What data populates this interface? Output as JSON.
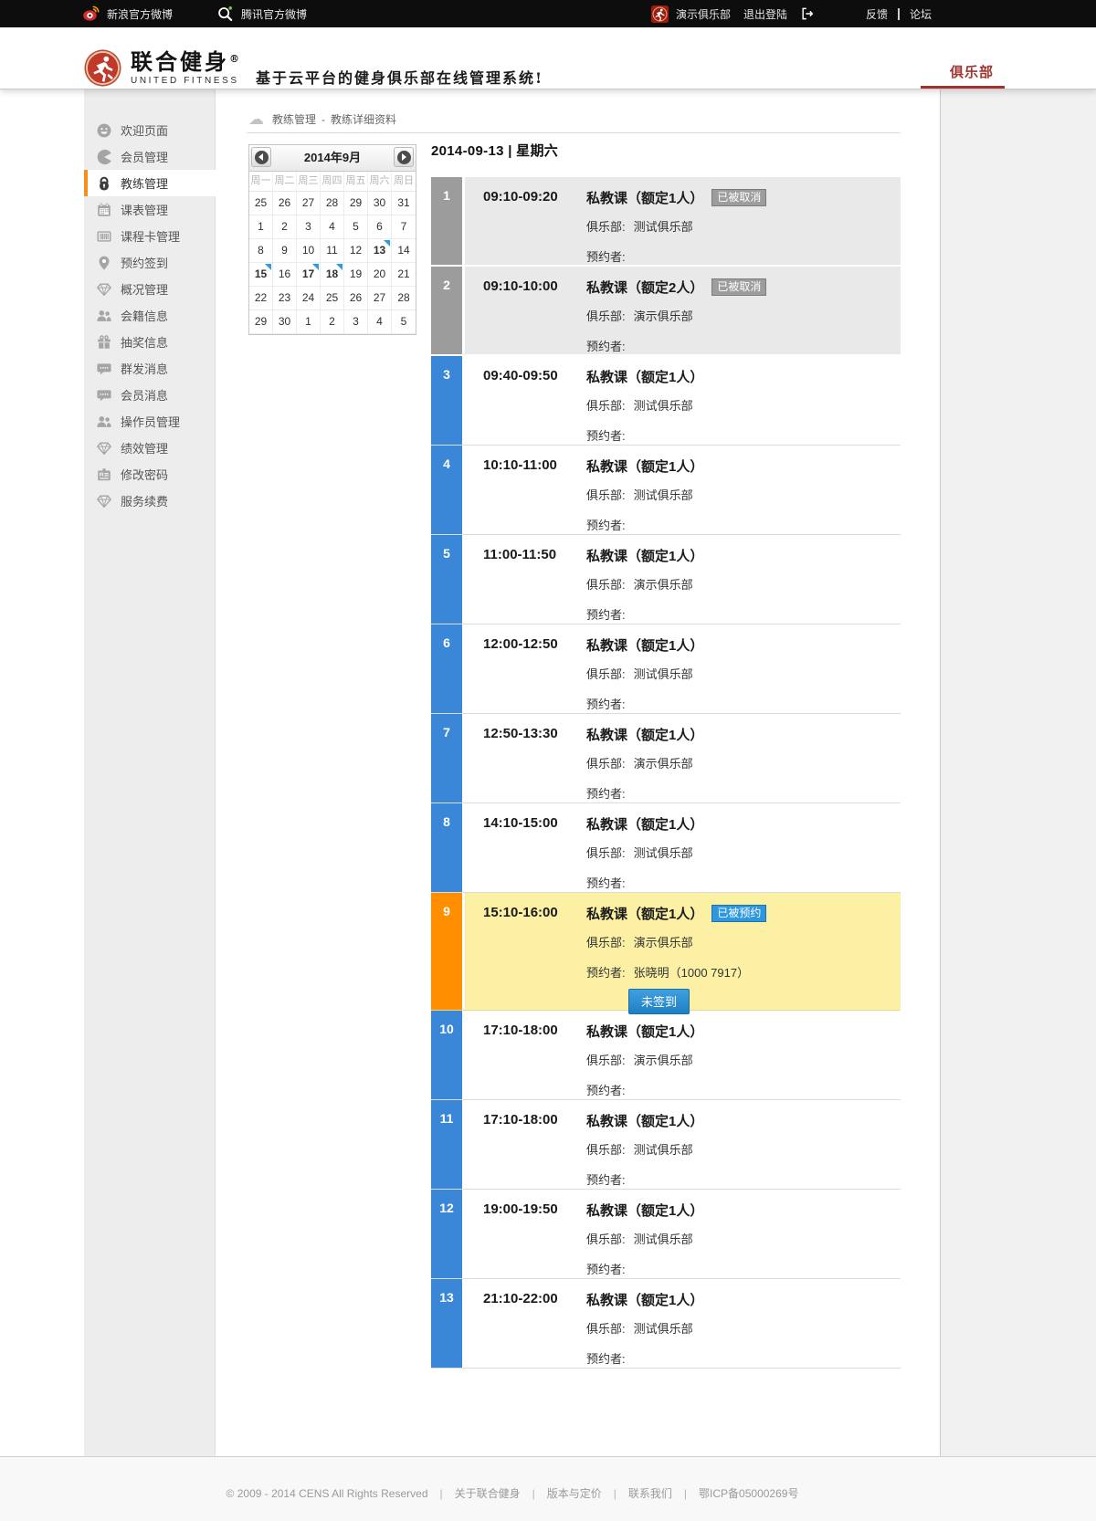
{
  "topbar": {
    "sina": {
      "icon": "sina-weibo-icon",
      "label": "新浪官方微博"
    },
    "tencent": {
      "icon": "tencent-weibo-icon",
      "label": "腾讯官方微博"
    },
    "club": {
      "icon": "club-runner-icon",
      "name": "演示俱乐部"
    },
    "logout_label": "退出登陆",
    "logout_icon": "logout-icon",
    "feedback_label": "反馈",
    "forum_label": "论坛"
  },
  "header": {
    "logo_icon": "runner-logo-icon",
    "brand_name": "联合健身",
    "brand_reg": "®",
    "brand_sub": "UNITED FITNESS",
    "tagline": "基于云平台的健身俱乐部在线管理系统!",
    "nav_tab": "俱乐部"
  },
  "sidebar": {
    "items": [
      {
        "label": "欢迎页面",
        "icon": "smiley-icon",
        "active": false
      },
      {
        "label": "会员管理",
        "icon": "pacman-icon",
        "active": false
      },
      {
        "label": "教练管理",
        "icon": "lock-icon",
        "active": true
      },
      {
        "label": "课表管理",
        "icon": "calendar-icon",
        "active": false
      },
      {
        "label": "课程卡管理",
        "icon": "barcode-icon",
        "active": false
      },
      {
        "label": "预约签到",
        "icon": "pin-icon",
        "active": false
      },
      {
        "label": "概况管理",
        "icon": "diamond-icon",
        "active": false
      },
      {
        "label": "会籍信息",
        "icon": "people-icon",
        "active": false
      },
      {
        "label": "抽奖信息",
        "icon": "gift-icon",
        "active": false
      },
      {
        "label": "群发消息",
        "icon": "chat-icon",
        "active": false
      },
      {
        "label": "会员消息",
        "icon": "chat-icon",
        "active": false
      },
      {
        "label": "操作员管理",
        "icon": "people-icon",
        "active": false
      },
      {
        "label": "绩效管理",
        "icon": "diamond-icon",
        "active": false
      },
      {
        "label": "修改密码",
        "icon": "idcard-icon",
        "active": false
      },
      {
        "label": "服务续费",
        "icon": "diamond-icon",
        "active": false
      }
    ]
  },
  "breadcrumb": {
    "icon": "cloud-icon",
    "section": "教练管理",
    "separator": "-",
    "page": "教练详细资料"
  },
  "calendar": {
    "title": "2014年9月",
    "prev_icon": "prev-month-icon",
    "next_icon": "next-month-icon",
    "weekdays": [
      "周一",
      "周二",
      "周三",
      "周四",
      "周五",
      "周六",
      "周日"
    ],
    "cells": [
      {
        "n": "25"
      },
      {
        "n": "26"
      },
      {
        "n": "27"
      },
      {
        "n": "28"
      },
      {
        "n": "29"
      },
      {
        "n": "30"
      },
      {
        "n": "31"
      },
      {
        "n": "1"
      },
      {
        "n": "2"
      },
      {
        "n": "3"
      },
      {
        "n": "4"
      },
      {
        "n": "5"
      },
      {
        "n": "6"
      },
      {
        "n": "7"
      },
      {
        "n": "8"
      },
      {
        "n": "9"
      },
      {
        "n": "10"
      },
      {
        "n": "11"
      },
      {
        "n": "12"
      },
      {
        "n": "13",
        "marked": true
      },
      {
        "n": "14"
      },
      {
        "n": "15",
        "marked": true
      },
      {
        "n": "16"
      },
      {
        "n": "17",
        "marked": true
      },
      {
        "n": "18",
        "marked": true
      },
      {
        "n": "19"
      },
      {
        "n": "20"
      },
      {
        "n": "21"
      },
      {
        "n": "22"
      },
      {
        "n": "23"
      },
      {
        "n": "24"
      },
      {
        "n": "25"
      },
      {
        "n": "26"
      },
      {
        "n": "27"
      },
      {
        "n": "28"
      },
      {
        "n": "29"
      },
      {
        "n": "30"
      },
      {
        "n": "1"
      },
      {
        "n": "2"
      },
      {
        "n": "3"
      },
      {
        "n": "4"
      },
      {
        "n": "5"
      }
    ]
  },
  "schedule": {
    "date_heading": "2014-09-13 | 星期六",
    "club_label": "俱乐部:",
    "booker_label": "预约者:",
    "rows": [
      {
        "n": "1",
        "time": "09:10-09:20",
        "title": "私教课（额定1人）",
        "state": "cancelled",
        "badge": "已被取消",
        "club": "测试俱乐部",
        "booker": ""
      },
      {
        "n": "2",
        "time": "09:10-10:00",
        "title": "私教课（额定2人）",
        "state": "cancelled",
        "badge": "已被取消",
        "club": "演示俱乐部",
        "booker": ""
      },
      {
        "n": "3",
        "time": "09:40-09:50",
        "title": "私教课（额定1人）",
        "state": "normal",
        "club": "测试俱乐部",
        "booker": ""
      },
      {
        "n": "4",
        "time": "10:10-11:00",
        "title": "私教课（额定1人）",
        "state": "normal",
        "club": "测试俱乐部",
        "booker": ""
      },
      {
        "n": "5",
        "time": "11:00-11:50",
        "title": "私教课（额定1人）",
        "state": "normal",
        "club": "演示俱乐部",
        "booker": ""
      },
      {
        "n": "6",
        "time": "12:00-12:50",
        "title": "私教课（额定1人）",
        "state": "normal",
        "club": "测试俱乐部",
        "booker": ""
      },
      {
        "n": "7",
        "time": "12:50-13:30",
        "title": "私教课（额定1人）",
        "state": "normal",
        "club": "演示俱乐部",
        "booker": ""
      },
      {
        "n": "8",
        "time": "14:10-15:00",
        "title": "私教课（额定1人）",
        "state": "normal",
        "club": "测试俱乐部",
        "booker": ""
      },
      {
        "n": "9",
        "time": "15:10-16:00",
        "title": "私教课（额定1人）",
        "state": "booked",
        "badge": "已被预约",
        "club": "演示俱乐部",
        "booker": "张晓明（1000 7917）",
        "action": "未签到"
      },
      {
        "n": "10",
        "time": "17:10-18:00",
        "title": "私教课（额定1人）",
        "state": "normal",
        "club": "演示俱乐部",
        "booker": ""
      },
      {
        "n": "11",
        "time": "17:10-18:00",
        "title": "私教课（额定1人）",
        "state": "normal",
        "club": "测试俱乐部",
        "booker": ""
      },
      {
        "n": "12",
        "time": "19:00-19:50",
        "title": "私教课（额定1人）",
        "state": "normal",
        "club": "测试俱乐部",
        "booker": ""
      },
      {
        "n": "13",
        "time": "21:10-22:00",
        "title": "私教课（额定1人）",
        "state": "normal",
        "club": "测试俱乐部",
        "booker": ""
      }
    ]
  },
  "footer": {
    "copyright": "© 2009 - 2014 CENS All Rights Reserved",
    "separator": "|",
    "links": [
      {
        "label": "关于联合健身",
        "link": true
      },
      {
        "label": "版本与定价",
        "link": true
      },
      {
        "label": "联系我们",
        "link": true
      },
      {
        "label": "鄂ICP备05000269号",
        "link": false
      }
    ]
  },
  "colors": {
    "accent_red": "#9e3430",
    "active_orange": "#f78f1e",
    "slot_blue": "#3a87d8",
    "slot_orange": "#ff8e00",
    "slot_gray": "#9c9c9c",
    "booked_row_bg": "#fbf0a3",
    "cancelled_row_bg": "#e9e9e9",
    "badge_blue": "#2e97e0",
    "marker_blue": "#2e9ae0"
  }
}
